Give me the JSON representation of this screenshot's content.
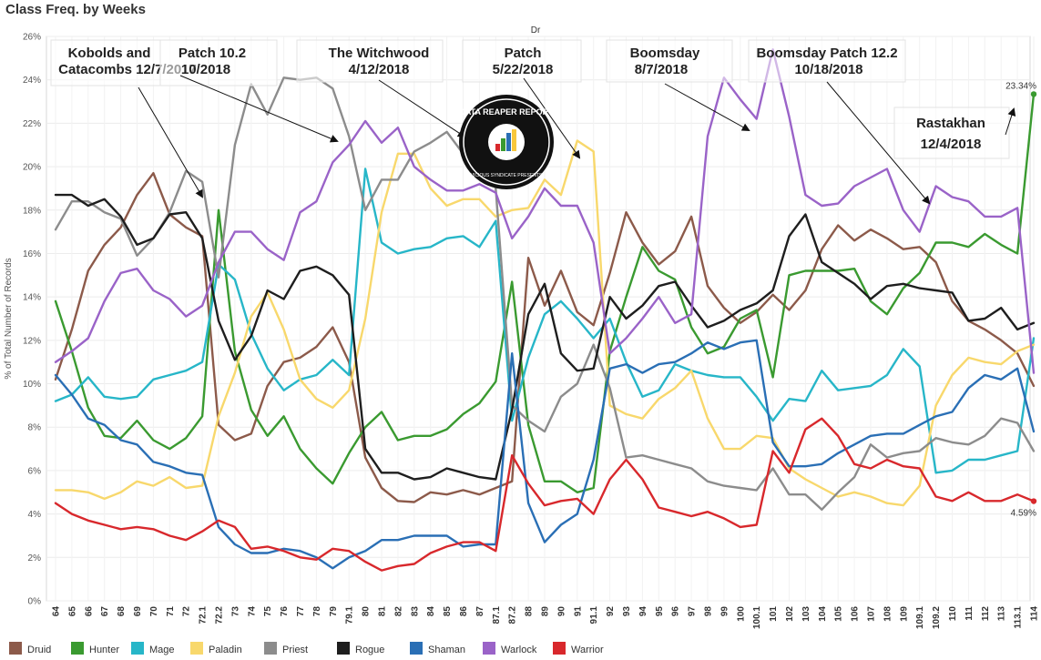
{
  "title": "Class Freq. by Weeks",
  "chart_data": {
    "type": "line",
    "header": "Dr",
    "ylabel": "% of Total Number of Records",
    "ylim": [
      0,
      26
    ],
    "yticks": [
      "0%",
      "2%",
      "4%",
      "6%",
      "8%",
      "10%",
      "12%",
      "14%",
      "16%",
      "18%",
      "20%",
      "22%",
      "24%",
      "26%"
    ],
    "grid": true,
    "categories": [
      "64",
      "65",
      "66",
      "67",
      "68",
      "69",
      "70",
      "71",
      "72",
      "72.1",
      "72.2",
      "73",
      "74",
      "75",
      "76",
      "77",
      "78",
      "79",
      "79.1",
      "80",
      "81",
      "82",
      "83",
      "84",
      "85",
      "86",
      "87",
      "87.1",
      "87.2",
      "88",
      "89",
      "90",
      "91",
      "91.1",
      "92",
      "93",
      "94",
      "95",
      "96",
      "97",
      "98",
      "99",
      "100",
      "100.1",
      "101",
      "102",
      "103",
      "104",
      "105",
      "106",
      "107",
      "108",
      "109",
      "109.1",
      "109.2",
      "110",
      "111",
      "112",
      "113",
      "113.1",
      "114"
    ],
    "series": [
      {
        "name": "Druid",
        "color": "#8c5a4a",
        "values": [
          10.2,
          12.5,
          15.2,
          16.4,
          17.2,
          18.7,
          19.7,
          17.8,
          17.2,
          16.8,
          8.1,
          7.4,
          7.7,
          9.9,
          11.0,
          11.2,
          11.7,
          12.6,
          11.0,
          6.6,
          5.2,
          4.6,
          4.55,
          5.0,
          4.9,
          5.1,
          4.9,
          5.2,
          5.5,
          15.8,
          13.6,
          15.2,
          13.3,
          12.7,
          15.1,
          17.9,
          16.5,
          15.5,
          16.1,
          17.7,
          14.5,
          13.5,
          12.8,
          13.3,
          14.1,
          13.4,
          14.3,
          16.2,
          17.3,
          16.6,
          17.1,
          16.7,
          16.2,
          16.3,
          15.6,
          13.8,
          12.9,
          12.5,
          12.0,
          11.4,
          9.9
        ]
      },
      {
        "name": "Hunter",
        "color": "#3a9a30",
        "values": [
          13.8,
          11.5,
          8.9,
          7.6,
          7.5,
          8.3,
          7.4,
          7.0,
          7.5,
          8.5,
          18.0,
          11.5,
          8.8,
          7.6,
          8.5,
          7.0,
          6.1,
          5.4,
          6.8,
          8.0,
          8.7,
          7.4,
          7.6,
          7.6,
          7.9,
          8.6,
          9.1,
          10.1,
          14.7,
          8.1,
          5.5,
          5.5,
          5.0,
          5.2,
          11.5,
          14.0,
          16.3,
          15.2,
          14.8,
          12.6,
          11.4,
          11.7,
          13.0,
          13.4,
          10.3,
          15.0,
          15.2,
          15.2,
          15.2,
          15.3,
          13.8,
          13.2,
          14.4,
          15.1,
          16.5,
          16.5,
          16.3,
          16.9,
          16.4,
          16.0,
          23.34
        ]
      },
      {
        "name": "Mage",
        "color": "#27b6c8",
        "values": [
          9.2,
          9.5,
          10.3,
          9.4,
          9.3,
          9.4,
          10.2,
          10.4,
          10.6,
          11.0,
          15.5,
          14.8,
          12.3,
          10.7,
          9.7,
          10.2,
          10.4,
          11.1,
          10.4,
          19.9,
          16.5,
          16.0,
          16.2,
          16.3,
          16.7,
          16.8,
          16.3,
          17.5,
          8.3,
          11.2,
          13.2,
          13.8,
          13.0,
          12.1,
          13.0,
          11.0,
          9.4,
          9.7,
          10.9,
          10.6,
          10.4,
          10.3,
          10.3,
          9.4,
          8.3,
          9.3,
          9.2,
          10.6,
          9.7,
          9.8,
          9.9,
          10.4,
          11.6,
          10.8,
          5.9,
          6.0,
          6.5,
          6.5,
          6.7,
          6.9,
          12.1
        ]
      },
      {
        "name": "Paladin",
        "color": "#f8d86c",
        "values": [
          5.1,
          5.1,
          5.0,
          4.7,
          5.0,
          5.5,
          5.3,
          5.7,
          5.2,
          5.3,
          8.5,
          10.5,
          13.1,
          14.2,
          12.5,
          10.2,
          9.3,
          8.9,
          9.7,
          13.0,
          17.9,
          20.6,
          20.6,
          19.0,
          18.2,
          18.5,
          18.5,
          17.7,
          18.0,
          18.1,
          19.4,
          18.7,
          21.2,
          20.7,
          9.0,
          8.6,
          8.4,
          9.3,
          9.8,
          10.6,
          8.4,
          7.0,
          7.0,
          7.6,
          7.5,
          6.1,
          5.6,
          5.2,
          4.8,
          5.0,
          4.8,
          4.5,
          4.4,
          5.3,
          9.0,
          10.4,
          11.2,
          11.0,
          10.9,
          11.5,
          11.8
        ]
      },
      {
        "name": "Priest",
        "color": "#8c8c8c",
        "values": [
          17.1,
          18.4,
          18.4,
          17.9,
          17.6,
          15.9,
          16.7,
          17.9,
          19.8,
          19.3,
          14.9,
          21.0,
          23.8,
          22.4,
          24.1,
          24.0,
          24.1,
          23.6,
          21.4,
          18.0,
          19.4,
          19.4,
          20.7,
          21.1,
          21.6,
          20.6,
          20.5,
          19.0,
          9.0,
          8.3,
          7.8,
          9.4,
          10.0,
          11.8,
          9.8,
          6.6,
          6.7,
          6.5,
          6.3,
          6.1,
          5.5,
          5.3,
          5.2,
          5.1,
          6.1,
          4.9,
          4.9,
          4.2,
          5.0,
          5.7,
          7.2,
          6.6,
          6.8,
          6.9,
          7.5,
          7.3,
          7.2,
          7.6,
          8.4,
          8.2,
          6.9
        ]
      },
      {
        "name": "Rogue",
        "color": "#1e1e1e",
        "values": [
          18.7,
          18.7,
          18.2,
          18.5,
          17.7,
          16.4,
          16.7,
          17.8,
          17.9,
          16.7,
          12.9,
          11.1,
          12.2,
          14.3,
          13.9,
          15.2,
          15.4,
          15.0,
          14.1,
          7.0,
          5.9,
          5.9,
          5.6,
          5.7,
          6.1,
          5.9,
          5.7,
          5.6,
          8.8,
          13.2,
          14.6,
          11.4,
          10.6,
          10.7,
          14.0,
          13.0,
          13.6,
          14.5,
          14.7,
          13.6,
          12.6,
          12.9,
          13.4,
          13.7,
          14.3,
          16.8,
          17.8,
          15.6,
          15.1,
          14.6,
          13.9,
          14.5,
          14.6,
          14.4,
          14.3,
          14.2,
          12.9,
          13.0,
          13.5,
          12.5,
          12.8
        ]
      },
      {
        "name": "Shaman",
        "color": "#2a6fb5",
        "values": [
          10.4,
          9.5,
          8.4,
          8.1,
          7.4,
          7.2,
          6.4,
          6.2,
          5.9,
          5.8,
          3.4,
          2.6,
          2.2,
          2.2,
          2.4,
          2.3,
          2.0,
          1.5,
          2.0,
          2.3,
          2.8,
          2.8,
          3.0,
          3.0,
          3.0,
          2.5,
          2.6,
          2.6,
          11.4,
          4.5,
          2.7,
          3.5,
          4.0,
          6.5,
          10.7,
          10.9,
          10.5,
          10.9,
          11.0,
          11.4,
          11.9,
          11.6,
          11.9,
          12.0,
          7.3,
          6.2,
          6.2,
          6.3,
          6.8,
          7.2,
          7.6,
          7.7,
          7.7,
          8.1,
          8.5,
          8.7,
          9.8,
          10.4,
          10.2,
          10.7,
          7.8
        ]
      },
      {
        "name": "Warlock",
        "color": "#9a63c8",
        "values": [
          11.0,
          11.5,
          12.1,
          13.8,
          15.1,
          15.3,
          14.3,
          13.9,
          13.1,
          13.6,
          15.6,
          17.0,
          17.0,
          16.2,
          15.7,
          17.9,
          18.4,
          20.2,
          21.0,
          22.1,
          21.1,
          21.8,
          20.0,
          19.4,
          18.9,
          18.9,
          19.2,
          18.8,
          16.7,
          17.7,
          19.0,
          18.2,
          18.2,
          16.5,
          11.4,
          12.1,
          13.0,
          14.0,
          12.8,
          13.2,
          21.4,
          24.1,
          23.1,
          22.2,
          25.4,
          22.3,
          18.7,
          18.2,
          18.3,
          19.1,
          19.5,
          19.9,
          18.0,
          17.0,
          19.1,
          18.6,
          18.4,
          17.7,
          17.7,
          18.1,
          10.5
        ]
      },
      {
        "name": "Warrior",
        "color": "#d8282c",
        "values": [
          4.5,
          4.0,
          3.7,
          3.5,
          3.3,
          3.4,
          3.3,
          3.0,
          2.8,
          3.2,
          3.7,
          3.4,
          2.4,
          2.5,
          2.3,
          2.0,
          1.9,
          2.4,
          2.3,
          1.8,
          1.4,
          1.6,
          1.7,
          2.2,
          2.5,
          2.7,
          2.7,
          2.3,
          6.7,
          5.4,
          4.4,
          4.6,
          4.7,
          4.0,
          5.6,
          6.5,
          5.6,
          4.3,
          4.1,
          3.9,
          4.1,
          3.8,
          3.4,
          3.5,
          6.9,
          5.9,
          7.9,
          8.4,
          7.6,
          6.3,
          6.1,
          6.5,
          6.2,
          6.1,
          4.8,
          4.6,
          5.0,
          4.6,
          4.6,
          4.9,
          4.59
        ]
      }
    ],
    "end_labels": [
      {
        "series": "Hunter",
        "text": "23.34%"
      },
      {
        "series": "Warrior",
        "text": "4.59%"
      }
    ],
    "annotations": [
      {
        "lines": [
          "Kobolds and",
          "Catacombs 12/7/2017"
        ]
      },
      {
        "lines": [
          "Patch 10.2",
          "10/2018"
        ]
      },
      {
        "lines": [
          "The Witchwood",
          "4/12/2018"
        ]
      },
      {
        "lines": [
          "Patch",
          "5/22/2018"
        ]
      },
      {
        "lines": [
          "Boomsday",
          "8/7/2018"
        ]
      },
      {
        "lines": [
          "Boomsday Patch 12.2",
          "10/18/2018"
        ]
      },
      {
        "lines": [
          "Rastakhan",
          "12/4/2018"
        ]
      }
    ],
    "logo": {
      "main": "DATA REAPER REPORT",
      "sub": "VICIOUS SYNDICATE PRESENTS"
    },
    "legend": [
      "Druid",
      "Hunter",
      "Mage",
      "Paladin",
      "Priest",
      "Rogue",
      "Shaman",
      "Warlock",
      "Warrior"
    ]
  }
}
